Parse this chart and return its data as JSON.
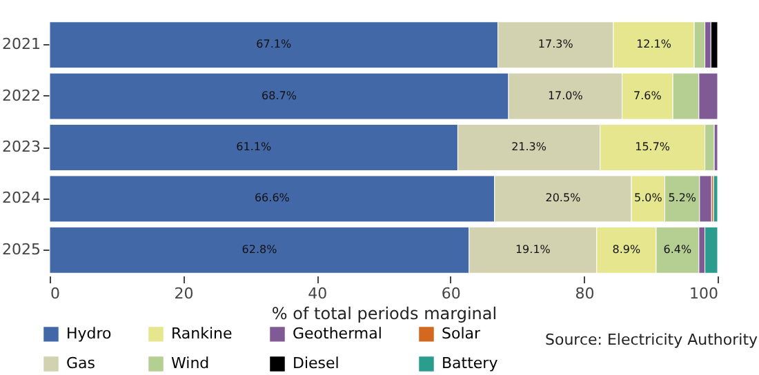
{
  "chart_data": {
    "type": "bar",
    "orientation": "horizontal",
    "stacked": true,
    "xlabel": "%  of  total periods marginal",
    "categories": [
      "2021",
      "2022",
      "2023",
      "2024",
      "2025"
    ],
    "series": [
      {
        "name": "Hydro",
        "color": "#4368a8",
        "values": [
          67.1,
          68.7,
          61.1,
          66.6,
          62.8
        ],
        "value_labels": [
          "67.1%",
          "68.7%",
          "61.1%",
          "66.6%",
          "62.8%"
        ]
      },
      {
        "name": "Gas",
        "color": "#d3d2b0",
        "values": [
          17.3,
          17.0,
          21.3,
          20.5,
          19.1
        ],
        "value_labels": [
          "17.3%",
          "17.0%",
          "21.3%",
          "20.5%",
          "19.1%"
        ]
      },
      {
        "name": "Rankine",
        "color": "#e6e68e",
        "values": [
          12.1,
          7.6,
          15.7,
          5.0,
          8.9
        ],
        "value_labels": [
          "12.1%",
          "7.6%",
          "15.7%",
          "5.0%",
          "8.9%"
        ]
      },
      {
        "name": "Wind",
        "color": "#b5cf92",
        "values": [
          1.6,
          3.9,
          1.4,
          5.2,
          6.4
        ],
        "value_labels": [
          null,
          null,
          null,
          "5.2%",
          "6.4%"
        ]
      },
      {
        "name": "Geothermal",
        "color": "#7f5a94",
        "values": [
          0.9,
          2.8,
          0.5,
          1.8,
          0.9
        ]
      },
      {
        "name": "Diesel",
        "color": "#000000",
        "values": [
          1.0,
          null,
          null,
          null,
          null
        ]
      },
      {
        "name": "Solar",
        "color": "#d2691e",
        "values": [
          null,
          null,
          null,
          0.3,
          null
        ]
      },
      {
        "name": "Battery",
        "color": "#2a9d8f",
        "values": [
          null,
          null,
          null,
          0.6,
          1.9
        ]
      }
    ],
    "xlim": [
      0,
      100
    ],
    "xticks": [
      0,
      20,
      40,
      60,
      80,
      100
    ],
    "legend": "bottom left",
    "annotations": [
      "Source: Electricity Authority"
    ]
  }
}
